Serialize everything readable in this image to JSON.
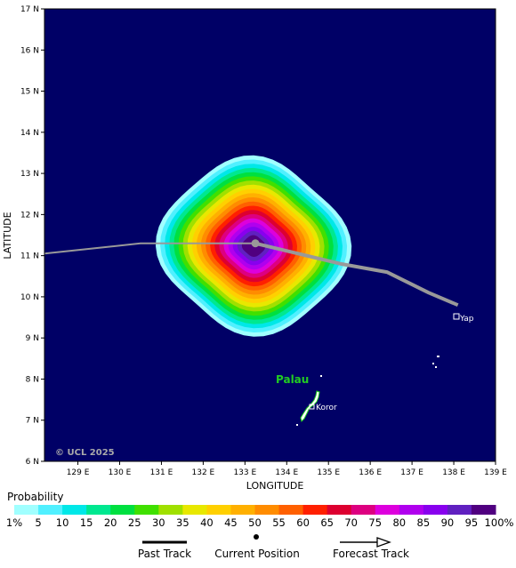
{
  "map": {
    "latitude_label": "LATITUDE",
    "longitude_label": "LONGITUDE",
    "lat_ticks": [
      "6 N",
      "7 N",
      "8 N",
      "9 N",
      "10 N",
      "11 N",
      "12 N",
      "13 N",
      "14 N",
      "15 N",
      "16 N",
      "17 N"
    ],
    "lon_ticks": [
      "129 E",
      "130 E",
      "131 E",
      "132 E",
      "133 E",
      "134 E",
      "135 E",
      "136 E",
      "137 E",
      "138 E",
      "139 E"
    ],
    "lat_range": [
      6,
      17
    ],
    "lon_range": [
      128.2,
      139
    ],
    "copyright": "© UCL 2025",
    "ocean_color": "#000066"
  },
  "places": {
    "palau": {
      "label": "Palau",
      "color": "#22cc22"
    },
    "koror": {
      "label": "Koror"
    },
    "yap": {
      "label": "Yap"
    }
  },
  "storm": {
    "current_position": {
      "lon": 133.25,
      "lat": 11.3
    },
    "past_track": [
      [
        128.2,
        11.05
      ],
      [
        130.5,
        11.3
      ],
      [
        133.25,
        11.3
      ]
    ],
    "forecast_track": [
      [
        133.25,
        11.3
      ],
      [
        135.3,
        10.8
      ],
      [
        136.4,
        10.6
      ],
      [
        137.4,
        10.1
      ],
      [
        138.1,
        9.8
      ]
    ],
    "track_color": "#999999"
  },
  "probability_legend": {
    "title": "Probability",
    "labels": [
      "1%",
      "5",
      "10",
      "15",
      "20",
      "25",
      "30",
      "35",
      "40",
      "45",
      "50",
      "55",
      "60",
      "65",
      "70",
      "75",
      "80",
      "85",
      "90",
      "95",
      "100%"
    ],
    "colors": [
      "#a0ffff",
      "#50f0ff",
      "#00e8e8",
      "#00e890",
      "#00e040",
      "#40e000",
      "#a0e000",
      "#e8e800",
      "#ffd000",
      "#ffb000",
      "#ff8c00",
      "#ff6000",
      "#ff2000",
      "#dd0030",
      "#dd0080",
      "#dd00dd",
      "#b000ee",
      "#8800ee",
      "#6020c0",
      "#500080"
    ]
  },
  "track_legend": {
    "past": "Past Track",
    "current": "Current Position",
    "forecast": "Forecast Track"
  }
}
